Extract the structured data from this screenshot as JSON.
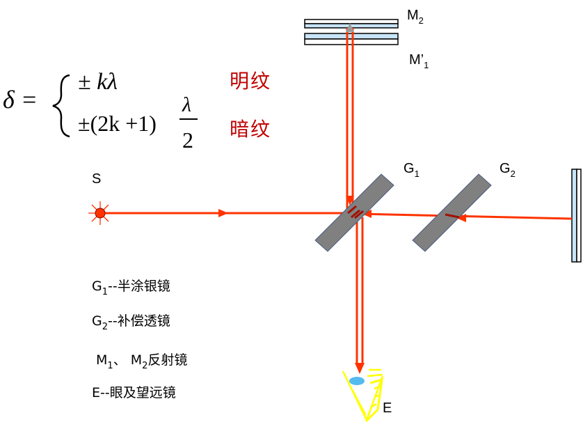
{
  "labels": {
    "M2": "M",
    "M2_sub": "2",
    "M1p": "M’",
    "M1p_sub": "1",
    "G1": "G",
    "G1_sub": "1",
    "G2": "G",
    "G2_sub": "2",
    "S": "S",
    "E": "E"
  },
  "formula": {
    "lhs": "δ =",
    "line1": "± kλ",
    "line2": "±(2k +1)",
    "frac_num": "λ",
    "frac_den": "2",
    "bright": "明纹",
    "dark": "暗纹"
  },
  "legend": [
    {
      "sym": "G",
      "sub": "1",
      "text": "--半涂银镜"
    },
    {
      "sym": "G",
      "sub": "2",
      "text": "--补偿透镜"
    },
    {
      "sym": "M",
      "sub": "1",
      "mid": "、  M",
      "sub2": "2",
      "text": "反射镜"
    },
    {
      "sym": "E",
      "text": "--眼及望远镜"
    }
  ],
  "colors": {
    "beam": "#ff3300",
    "beam_dark": "#a01000",
    "mirror_fill": "#c8e4f8",
    "plate": "#808080",
    "eye": "#ffff00",
    "pupil": "#55bbee",
    "text_red": "#c00000"
  }
}
